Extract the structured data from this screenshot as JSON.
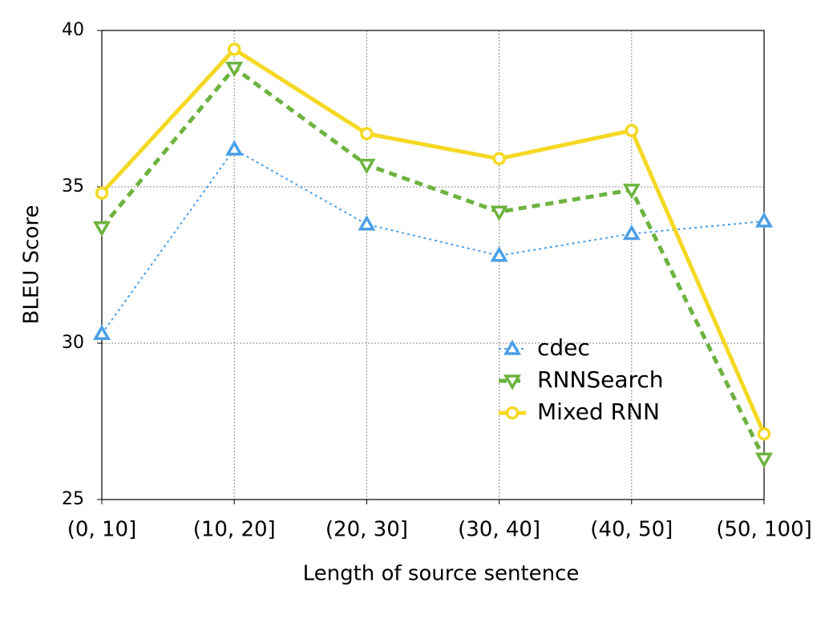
{
  "chart_data": {
    "type": "line",
    "xlabel": "Length of source sentence",
    "ylabel": "BLEU Score",
    "categories": [
      "(0, 10]",
      "(10, 20]",
      "(20, 30]",
      "(30, 40]",
      "(40, 50]",
      "(50, 100]"
    ],
    "series": [
      {
        "name": "cdec",
        "color": "#4a9fe8",
        "marker": "triangle-up",
        "linestyle": "dotted",
        "values": [
          30.3,
          36.2,
          33.8,
          32.8,
          33.5,
          33.9
        ]
      },
      {
        "name": "RNNSearch",
        "color": "#6db33f",
        "marker": "triangle-down",
        "linestyle": "dashed",
        "values": [
          33.7,
          38.8,
          35.7,
          34.2,
          34.9,
          26.3
        ]
      },
      {
        "name": "Mixed RNN",
        "color": "#f5d823",
        "marker": "circle",
        "linestyle": "solid",
        "values": [
          34.8,
          39.4,
          36.7,
          35.9,
          36.8,
          27.1
        ]
      }
    ],
    "ylim": [
      25,
      40
    ],
    "yticks": [
      25,
      30,
      35,
      40
    ],
    "grid": true
  }
}
